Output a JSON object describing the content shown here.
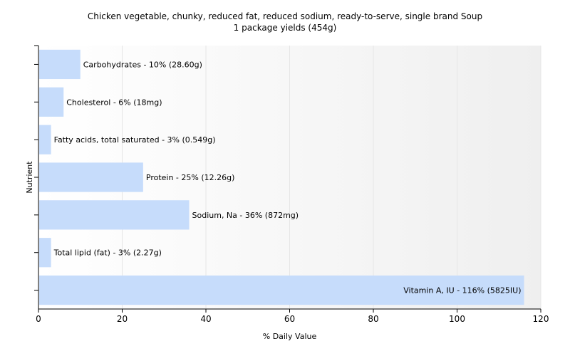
{
  "chart_data": {
    "type": "bar",
    "orientation": "horizontal",
    "title": "Chicken vegetable, chunky, reduced fat, reduced sodium, ready-to-serve, single brand Soup",
    "subtitle": "1 package yields (454g)",
    "xlabel": "% Daily Value",
    "ylabel": "Nutrient",
    "xlim": [
      0,
      120
    ],
    "xticks": [
      "0",
      "20",
      "40",
      "60",
      "80",
      "100",
      "120"
    ],
    "grid": true,
    "categories": [
      "Carbohydrates",
      "Cholesterol",
      "Fatty acids, total saturated",
      "Protein",
      "Sodium, Na",
      "Total lipid (fat)",
      "Vitamin A, IU"
    ],
    "values": [
      10,
      6,
      3,
      25,
      36,
      3,
      116
    ],
    "labels": [
      "Carbohydrates - 10% (28.60g)",
      "Cholesterol - 6% (18mg)",
      "Fatty acids, total saturated - 3% (0.549g)",
      "Protein - 25% (12.26g)",
      "Sodium, Na - 36% (872mg)",
      "Total lipid (fat) - 3% (2.27g)",
      "Vitamin A, IU - 116% (5825IU)"
    ],
    "colors": {
      "bar": "#c6dcfb",
      "grid": "#e6e6e6",
      "plot_background_start": "#ffffff",
      "plot_background_end": "#efefef"
    }
  }
}
